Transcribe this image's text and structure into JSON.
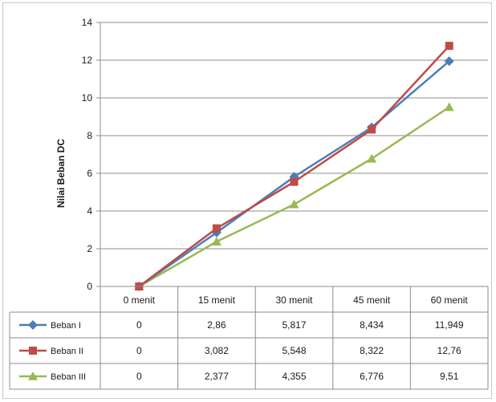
{
  "chart_data": {
    "type": "line",
    "ylabel": "Nilai Beban DC",
    "ylim": [
      0,
      14
    ],
    "yticks": [
      0,
      2,
      4,
      6,
      8,
      10,
      12,
      14
    ],
    "grid": true,
    "legend": "data-table-bottom",
    "categories": [
      "0 menit",
      "15 menit",
      "30 menit",
      "45 menit",
      "60 menit"
    ],
    "series": [
      {
        "name": "Beban I",
        "values": [
          0,
          2.86,
          5.817,
          8.434,
          11.949
        ],
        "labels": [
          "0",
          "2,86",
          "5,817",
          "8,434",
          "11,949"
        ],
        "color": "#4a7ebb",
        "marker": "diamond"
      },
      {
        "name": "Beban II",
        "values": [
          0,
          3.082,
          5.548,
          8.322,
          12.76
        ],
        "labels": [
          "0",
          "3,082",
          "5,548",
          "8,322",
          "12,76"
        ],
        "color": "#be4b48",
        "marker": "square"
      },
      {
        "name": "Beban III",
        "values": [
          0,
          2.377,
          4.355,
          6.776,
          9.51
        ],
        "labels": [
          "0",
          "2,377",
          "4,355",
          "6,776",
          "9,51"
        ],
        "color": "#98b954",
        "marker": "triangle"
      }
    ]
  }
}
